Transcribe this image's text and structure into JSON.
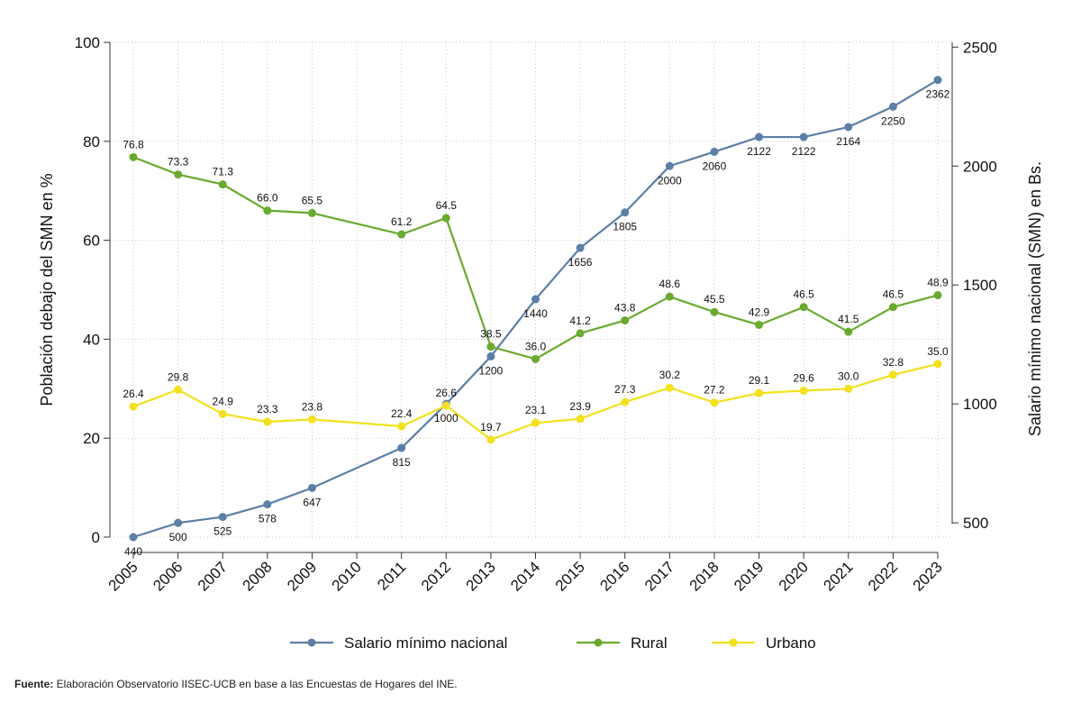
{
  "chart_data": {
    "type": "line",
    "categories": [
      "2005",
      "2006",
      "2007",
      "2008",
      "2009",
      "2010",
      "2011",
      "2012",
      "2013",
      "2014",
      "2015",
      "2016",
      "2017",
      "2018",
      "2019",
      "2020",
      "2021",
      "2022",
      "2023"
    ],
    "y_left": {
      "label": "Población debajo del SMN en %",
      "range": [
        0,
        100
      ],
      "ticks": [
        "0",
        "20",
        "40",
        "60",
        "80",
        "100"
      ]
    },
    "y_right": {
      "label": "Salario mínimo nacional (SMN) en Bs.",
      "range": [
        440,
        2520
      ],
      "ticks": [
        "500",
        "1000",
        "1500",
        "2000",
        "2500"
      ]
    },
    "series": [
      {
        "name": "Salario mínimo nacional",
        "axis": "right",
        "color": "#5b7fa6",
        "values": [
          440,
          500,
          525,
          578,
          647,
          null,
          815,
          1000,
          1200,
          1440,
          1656,
          1805,
          2000,
          2060,
          2122,
          2122,
          2164,
          2250,
          2362
        ],
        "labels": [
          "440",
          "500",
          "525",
          "578",
          "647",
          null,
          "815",
          "1000",
          "1200",
          "1440",
          "1656",
          "1805",
          "2000",
          "2060",
          "2122",
          "2122",
          "2164",
          "2250",
          "2362"
        ]
      },
      {
        "name": "Rural",
        "axis": "left",
        "color": "#6aaa2f",
        "values": [
          76.8,
          73.3,
          71.3,
          66.0,
          65.5,
          null,
          61.2,
          64.5,
          38.5,
          36.0,
          41.2,
          43.8,
          48.6,
          45.5,
          42.9,
          46.5,
          41.5,
          46.5,
          48.9
        ],
        "labels": [
          "76.8",
          "73.3",
          "71.3",
          "66.0",
          "65.5",
          null,
          "61.2",
          "64.5",
          "38.5",
          "36.0",
          "41.2",
          "43.8",
          "48.6",
          "45.5",
          "42.9",
          "46.5",
          "41.5",
          "46.5",
          "48.9"
        ]
      },
      {
        "name": "Urbano",
        "axis": "left",
        "color": "#f2e11c",
        "values": [
          26.4,
          29.8,
          24.9,
          23.3,
          23.8,
          null,
          22.4,
          26.6,
          19.7,
          23.1,
          23.9,
          27.3,
          30.2,
          27.2,
          29.1,
          29.6,
          30.0,
          32.8,
          35.0
        ],
        "labels": [
          "26.4",
          "29.8",
          "24.9",
          "23.3",
          "23.8",
          null,
          "22.4",
          "26.6",
          "19.7",
          "23.1",
          "23.9",
          "27.3",
          "30.2",
          "27.2",
          "29.1",
          "29.6",
          "30.0",
          "32.8",
          "35.0"
        ]
      }
    ],
    "grid": true,
    "legend_position": "bottom-center"
  },
  "source": {
    "prefix": "Fuente:",
    "text": " Elaboración Observatorio IISEC-UCB en base a las Encuestas de Hogares del INE."
  }
}
